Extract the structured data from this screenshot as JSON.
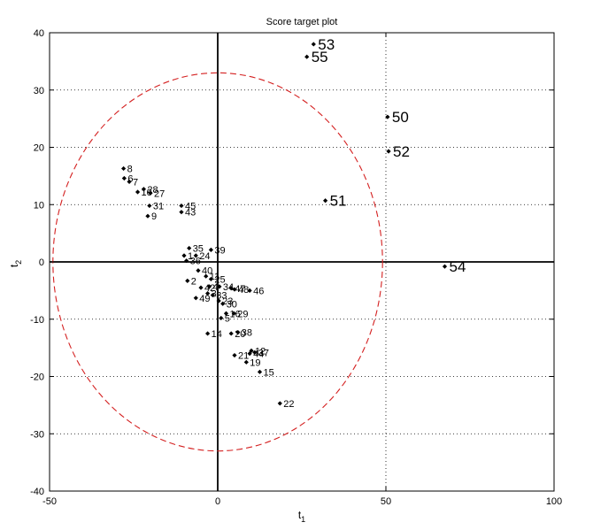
{
  "chart_data": {
    "type": "scatter",
    "title": "Score target plot",
    "xlabel": "t",
    "xlabel_sub": "1",
    "ylabel": "t",
    "ylabel_sub": "2",
    "xlim": [
      -50,
      100
    ],
    "ylim": [
      -40,
      40
    ],
    "xticks": [
      -50,
      0,
      50,
      100
    ],
    "yticks": [
      -40,
      -30,
      -20,
      -10,
      0,
      10,
      20,
      30,
      40
    ],
    "grid": "dotted",
    "confidence_ellipse": {
      "cx": 0,
      "cy": 0,
      "rx": 49,
      "ry": 33,
      "color": "#d42020"
    },
    "points": [
      {
        "label": "53",
        "x": 28.5,
        "y": 38.0,
        "big": true
      },
      {
        "label": "55",
        "x": 26.5,
        "y": 35.8,
        "big": true
      },
      {
        "label": "50",
        "x": 50.5,
        "y": 25.3,
        "big": true
      },
      {
        "label": "52",
        "x": 50.8,
        "y": 19.3,
        "big": true
      },
      {
        "label": "51",
        "x": 32.0,
        "y": 10.7,
        "big": true
      },
      {
        "label": "54",
        "x": 67.5,
        "y": -0.8,
        "big": true
      },
      {
        "label": "8",
        "x": -28.0,
        "y": 16.3
      },
      {
        "label": "6",
        "x": -27.8,
        "y": 14.6
      },
      {
        "label": "7",
        "x": -26.3,
        "y": 14.0
      },
      {
        "label": "28",
        "x": -22.0,
        "y": 12.7
      },
      {
        "label": "10",
        "x": -23.8,
        "y": 12.2
      },
      {
        "label": "27",
        "x": -20.0,
        "y": 12.0
      },
      {
        "label": "31",
        "x": -20.3,
        "y": 9.8
      },
      {
        "label": "9",
        "x": -20.8,
        "y": 8.0
      },
      {
        "label": "45",
        "x": -10.8,
        "y": 9.8
      },
      {
        "label": "43",
        "x": -10.8,
        "y": 8.7
      },
      {
        "label": "35",
        "x": -8.5,
        "y": 2.4
      },
      {
        "label": "39",
        "x": -2.0,
        "y": 2.1
      },
      {
        "label": "1",
        "x": -10.0,
        "y": 1.1
      },
      {
        "label": "24",
        "x": -6.5,
        "y": 1.1
      },
      {
        "label": "36",
        "x": -9.3,
        "y": 0.2
      },
      {
        "label": "40",
        "x": -5.8,
        "y": -1.5
      },
      {
        "label": "11",
        "x": -3.5,
        "y": -2.5
      },
      {
        "label": "25",
        "x": -2.0,
        "y": -3.0
      },
      {
        "label": "2",
        "x": -9.0,
        "y": -3.3
      },
      {
        "label": "42",
        "x": -5.0,
        "y": -4.5
      },
      {
        "label": "4",
        "x": -2.5,
        "y": -4.3
      },
      {
        "label": "34",
        "x": 0.5,
        "y": -4.3
      },
      {
        "label": "47",
        "x": 4.0,
        "y": -4.6
      },
      {
        "label": "48",
        "x": 5.0,
        "y": -4.8
      },
      {
        "label": "46",
        "x": 9.5,
        "y": -5.0
      },
      {
        "label": "3",
        "x": -3.0,
        "y": -5.5
      },
      {
        "label": "33",
        "x": -1.5,
        "y": -5.8
      },
      {
        "label": "49",
        "x": -6.5,
        "y": -6.3
      },
      {
        "label": "23",
        "x": 0.3,
        "y": -6.8
      },
      {
        "label": "30",
        "x": 1.5,
        "y": -7.3
      },
      {
        "label": "16",
        "x": 2.5,
        "y": -9.0
      },
      {
        "label": "29",
        "x": 4.8,
        "y": -9.0
      },
      {
        "label": "5",
        "x": 1.0,
        "y": -9.8
      },
      {
        "label": "14",
        "x": -3.0,
        "y": -12.5
      },
      {
        "label": "20",
        "x": 4.0,
        "y": -12.5
      },
      {
        "label": "38",
        "x": 6.0,
        "y": -12.3
      },
      {
        "label": "12",
        "x": 10.0,
        "y": -15.5
      },
      {
        "label": "21",
        "x": 5.0,
        "y": -16.3
      },
      {
        "label": "44",
        "x": 9.5,
        "y": -16.0
      },
      {
        "label": "37",
        "x": 11.0,
        "y": -15.8
      },
      {
        "label": "19",
        "x": 8.5,
        "y": -17.5
      },
      {
        "label": "15",
        "x": 12.5,
        "y": -19.2
      },
      {
        "label": "22",
        "x": 18.5,
        "y": -24.7
      }
    ]
  }
}
